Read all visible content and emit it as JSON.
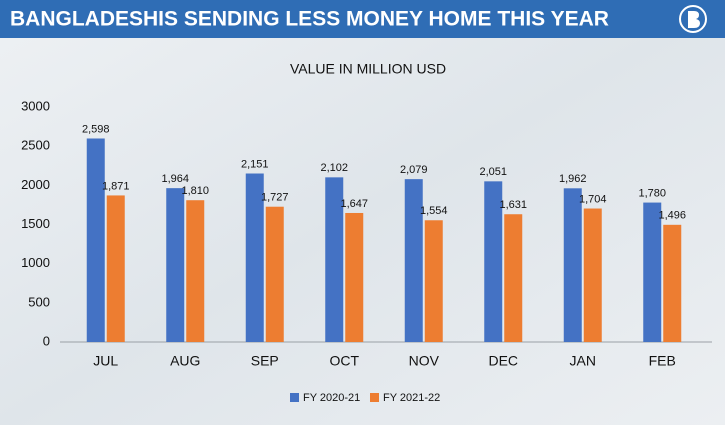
{
  "chart_data": {
    "type": "bar",
    "title": "BANGLADESHIS SENDING LESS MONEY HOME THIS YEAR",
    "subtitle": "VALUE IN MILLION USD",
    "categories": [
      "JUL",
      "AUG",
      "SEP",
      "OCT",
      "NOV",
      "DEC",
      "JAN",
      "FEB"
    ],
    "series": [
      {
        "name": "FY 2020-21",
        "color": "#4472c4",
        "values": [
          2598,
          1964,
          2151,
          2102,
          2079,
          2051,
          1962,
          1780
        ],
        "value_labels": [
          "2,598",
          "1,964",
          "2,151",
          "2,102",
          "2,079",
          "2,051",
          "1,962",
          "1,780"
        ]
      },
      {
        "name": "FY 2021-22",
        "color": "#ed7d31",
        "values": [
          1871,
          1810,
          1727,
          1647,
          1554,
          1631,
          1704,
          1496
        ],
        "value_labels": [
          "1,871",
          "1,810",
          "1,727",
          "1,647",
          "1,554",
          "1,631",
          "1,704",
          "1,496"
        ]
      }
    ],
    "ylim": [
      0,
      3000
    ],
    "yticks": [
      0,
      500,
      1000,
      1500,
      2000,
      2500,
      3000
    ],
    "grid": false
  }
}
